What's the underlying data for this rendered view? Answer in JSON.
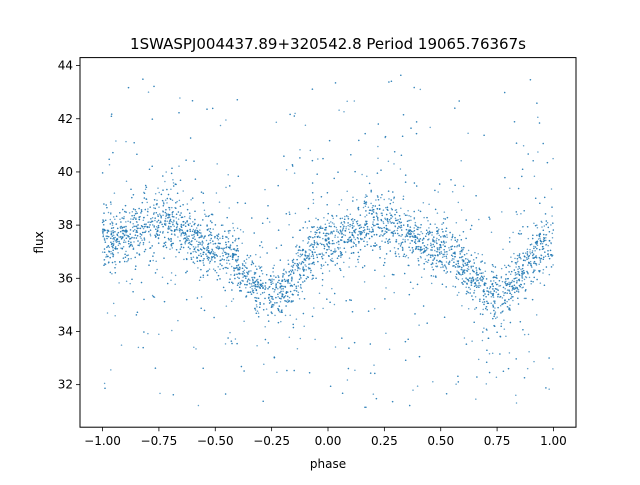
{
  "chart_data": {
    "type": "scatter",
    "title": "1SWASPJ004437.89+320542.8 Period 19065.76367s",
    "xlabel": "phase",
    "ylabel": "flux",
    "xlim": [
      -1.1,
      1.1
    ],
    "ylim": [
      30.4,
      44.3
    ],
    "xticks": [
      -1.0,
      -0.75,
      -0.5,
      -0.25,
      0.0,
      0.25,
      0.5,
      0.75,
      1.0
    ],
    "xtick_labels": [
      "−1.00",
      "−0.75",
      "−0.50",
      "−0.25",
      "0.00",
      "0.25",
      "0.50",
      "0.75",
      "1.00"
    ],
    "yticks": [
      32,
      34,
      36,
      38,
      40,
      42,
      44
    ],
    "ytick_labels": [
      "32",
      "34",
      "36",
      "38",
      "40",
      "42",
      "44"
    ],
    "grid": false,
    "legend": "none",
    "marker_color": "#1f77b4",
    "phase_range": [
      -1.0,
      1.0
    ],
    "light_curve": {
      "phase": [
        -1.0,
        -0.75,
        -0.5,
        -0.25,
        0.0,
        0.25,
        0.5,
        0.75,
        1.0
      ],
      "flux": [
        37.4,
        38.1,
        37.1,
        35.4,
        37.4,
        38.1,
        37.1,
        35.4,
        37.4
      ]
    },
    "flux_scatter_core": 0.5,
    "flux_outlier_range": [
      31.0,
      43.5
    ]
  }
}
